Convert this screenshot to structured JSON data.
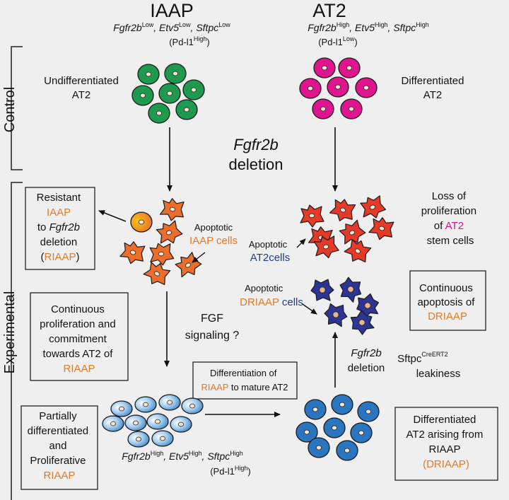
{
  "colors": {
    "background": "#efefef",
    "orange_text": "#e07b2a",
    "magenta_text": "#d4178f",
    "navy_text": "#1f3d8c",
    "green_cell": "#1e9a4e",
    "magenta_cell": "#e0148e",
    "red_cell": "#e43a27",
    "orange_cell": "#ec6e2a",
    "yellow_cell": "#f0b21a",
    "navy_cell": "#2d3594",
    "blue_cell": "#2a75c0",
    "light_blue_cell": "#7fb8e6"
  },
  "header": {
    "left_title": "IAAP",
    "left_genes": [
      "Fgfr2b",
      "Low",
      ", ",
      "Etv5",
      "Low",
      ", ",
      "Sftpc",
      "Low"
    ],
    "left_pdl1": [
      "(Pd-l1",
      "High",
      ")"
    ],
    "right_title": "AT2",
    "right_genes": [
      "Fgfr2b",
      "High",
      ", ",
      "Etv5",
      "High",
      ", ",
      "Sftpc",
      "High"
    ],
    "right_pdl1": [
      "(Pd-l1",
      "Low",
      ")"
    ]
  },
  "side_labels": {
    "control": "Control",
    "experimental": "Experimental"
  },
  "control": {
    "left_label": [
      "Undifferentiated",
      "AT2"
    ],
    "right_label": [
      "Differentiated",
      "AT2"
    ],
    "center": [
      "Fgfr2b",
      "deletion"
    ]
  },
  "experimental": {
    "resistant_box": [
      "Resistant",
      "IAAP",
      "to ",
      "Fgfr2b",
      "deletion",
      "(",
      "RIAAP",
      ")"
    ],
    "apoptotic_iaap": [
      "Apoptotic",
      "IAAP cells"
    ],
    "apoptotic_at2": [
      "Apoptotic",
      "AT2cells"
    ],
    "loss_label": [
      "Loss of",
      "proliferation",
      "of ",
      "AT2",
      "stem cells"
    ],
    "apoptotic_driaap": [
      "Apoptotic",
      "DRIAAP",
      " cells"
    ],
    "continuous_apoptosis_box": [
      "Continuous",
      "apoptosis of",
      "DRIAAP"
    ],
    "proliferation_box": [
      "Continuous",
      "proliferation and",
      "commitment",
      "towards AT2 of",
      "RIAAP"
    ],
    "fgf_signaling": [
      "FGF",
      "signaling ?"
    ],
    "fgfr2b_deletion_right": [
      "Fgfr2b",
      "deletion"
    ],
    "sftpc_leakiness": [
      "Sftpc",
      "CreERT2",
      "leakiness"
    ],
    "differentiation_box": [
      "Differentiation of",
      "RIAAP",
      " to mature AT2"
    ],
    "partially_box": [
      "Partially",
      "differentiated",
      "and",
      "Proliferative",
      "RIAAP"
    ],
    "bottom_genes": [
      "Fgfr2b",
      "High",
      ", ",
      "Etv5",
      "High",
      ", ",
      "Sftpc",
      "High"
    ],
    "bottom_pdl1": [
      "(Pd-l1",
      "High",
      ")"
    ],
    "driaap_box": [
      "Differentiated",
      "AT2 arising from",
      "RIAAP",
      "(DRIAAP)"
    ]
  }
}
